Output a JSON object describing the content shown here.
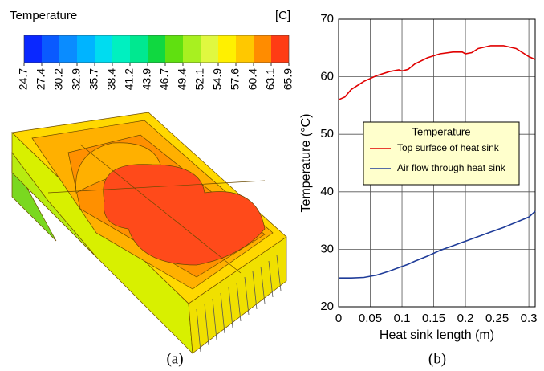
{
  "colorbar": {
    "title": "Temperature",
    "unit": "[C]",
    "ticks": [
      24.7,
      27.4,
      30.2,
      32.9,
      35.7,
      38.4,
      41.2,
      43.9,
      46.7,
      49.4,
      52.1,
      54.9,
      57.6,
      60.4,
      63.1,
      65.9
    ],
    "colors": [
      "#0a28ff",
      "#0a5aff",
      "#0a8cff",
      "#00b4ff",
      "#00dcf0",
      "#00f0c0",
      "#00e890",
      "#10d840",
      "#60e010",
      "#a8f020",
      "#e0f840",
      "#fff000",
      "#ffc800",
      "#ff8c00",
      "#ff3c14"
    ]
  },
  "captions": [
    "(a)",
    "(b)"
  ],
  "chart_data": {
    "type": "line",
    "xlabel": "Heat sink length (m)",
    "ylabel": "Temperature (°C)",
    "x": [
      0,
      0.01,
      0.02,
      0.04,
      0.06,
      0.08,
      0.095,
      0.1,
      0.11,
      0.12,
      0.14,
      0.16,
      0.18,
      0.195,
      0.2,
      0.21,
      0.22,
      0.24,
      0.26,
      0.28,
      0.3,
      0.31
    ],
    "series": [
      {
        "name": "Top surface of heat sink",
        "color": "#e00000",
        "values": [
          56,
          56.5,
          57.8,
          59.2,
          60.2,
          60.9,
          61.2,
          61.0,
          61.3,
          62.2,
          63.3,
          64.0,
          64.3,
          64.3,
          64.0,
          64.2,
          64.9,
          65.4,
          65.4,
          64.9,
          63.5,
          63.0
        ]
      },
      {
        "name": "Air flow through heat sink",
        "color": "#1f3c99",
        "values": [
          25,
          25,
          25,
          25.1,
          25.5,
          26.2,
          26.8,
          27.0,
          27.4,
          27.9,
          28.8,
          29.8,
          30.6,
          31.2,
          31.4,
          31.8,
          32.2,
          33.0,
          33.8,
          34.7,
          35.6,
          36.6
        ]
      }
    ],
    "legend_title": "Temperature",
    "legend": "center-right",
    "xlim": [
      0,
      0.31
    ],
    "ylim": [
      20,
      70
    ],
    "xticks": [
      0,
      0.05,
      0.1,
      0.15,
      0.2,
      0.25,
      0.3
    ],
    "yticks": [
      20,
      30,
      40,
      50,
      60,
      70
    ],
    "grid": true
  }
}
